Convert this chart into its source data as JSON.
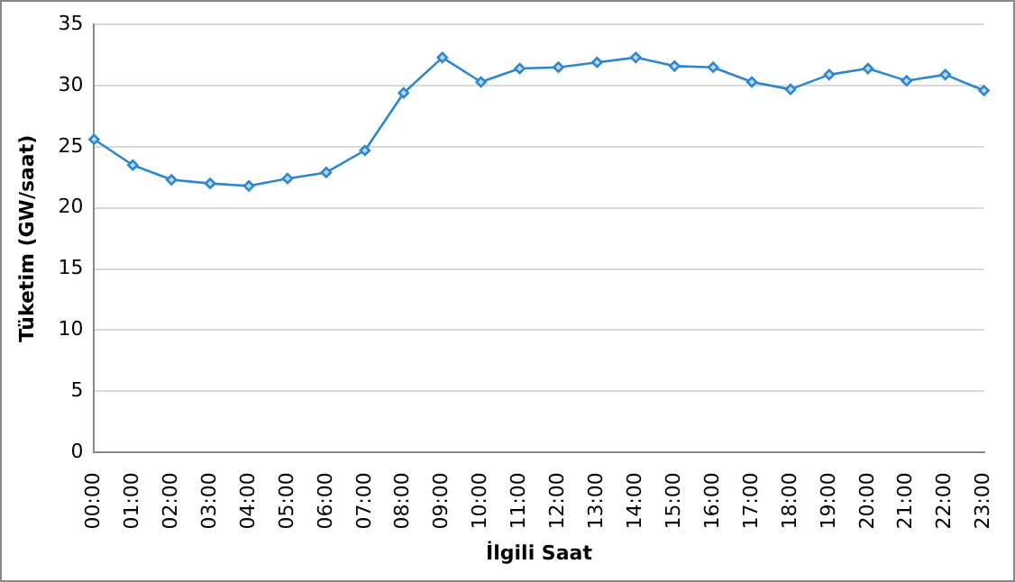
{
  "chart_data": {
    "type": "line",
    "xlabel": "İlgili Saat",
    "ylabel": "Tüketim (GW/saat)",
    "categories": [
      "00:00",
      "01:00",
      "02:00",
      "03:00",
      "04:00",
      "05:00",
      "06:00",
      "07:00",
      "08:00",
      "09:00",
      "10:00",
      "11:00",
      "12:00",
      "13:00",
      "14:00",
      "15:00",
      "16:00",
      "17:00",
      "18:00",
      "19:00",
      "20:00",
      "21:00",
      "22:00",
      "23:00"
    ],
    "series": [
      {
        "color": "#2e86d0",
        "values": [
          25.6,
          23.5,
          22.3,
          22.0,
          21.8,
          22.4,
          22.9,
          24.7,
          29.4,
          32.3,
          30.3,
          31.4,
          31.5,
          31.9,
          32.3,
          31.6,
          31.5,
          30.3,
          29.7,
          30.9,
          31.4,
          30.4,
          30.9,
          29.6
        ]
      }
    ],
    "ylim": [
      0,
      35
    ],
    "yticks": [
      0,
      5,
      10,
      15,
      20,
      25,
      30,
      35
    ],
    "grid": "y",
    "marker": "diamond",
    "line_style": "solid",
    "legend": false
  }
}
